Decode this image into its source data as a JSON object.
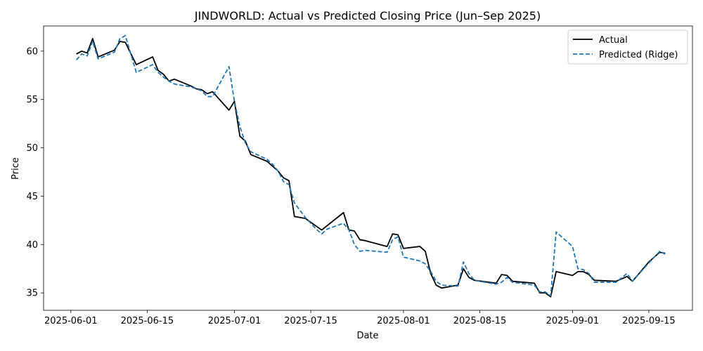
{
  "chart_data": {
    "type": "line",
    "title": "JINDWORLD: Actual vs Predicted Closing Price (Jun–Sep 2025)",
    "xlabel": "Date",
    "ylabel": "Price",
    "x_axis_type": "date",
    "xlim": [
      "2025-05-27",
      "2025-09-23"
    ],
    "ylim": [
      33.2,
      62.6
    ],
    "x_ticks": [
      "2025-06-01",
      "2025-06-15",
      "2025-07-01",
      "2025-07-15",
      "2025-08-01",
      "2025-08-15",
      "2025-09-01",
      "2025-09-15"
    ],
    "y_ticks": [
      35,
      40,
      45,
      50,
      55,
      60
    ],
    "grid": false,
    "legend_position": "top-right",
    "series": [
      {
        "name": "Actual",
        "color": "#000000",
        "style": "solid",
        "points": [
          [
            "2025-06-02",
            59.7
          ],
          [
            "2025-06-03",
            60.0
          ],
          [
            "2025-06-04",
            59.8
          ],
          [
            "2025-06-05",
            61.3
          ],
          [
            "2025-06-06",
            59.4
          ],
          [
            "2025-06-09",
            60.1
          ],
          [
            "2025-06-10",
            61.0
          ],
          [
            "2025-06-11",
            60.9
          ],
          [
            "2025-06-13",
            58.6
          ],
          [
            "2025-06-16",
            59.4
          ],
          [
            "2025-06-17",
            58.0
          ],
          [
            "2025-06-18",
            57.6
          ],
          [
            "2025-06-19",
            56.9
          ],
          [
            "2025-06-20",
            57.1
          ],
          [
            "2025-06-23",
            56.4
          ],
          [
            "2025-06-24",
            56.1
          ],
          [
            "2025-06-25",
            56.0
          ],
          [
            "2025-06-26",
            55.6
          ],
          [
            "2025-06-27",
            55.8
          ],
          [
            "2025-06-30",
            53.9
          ],
          [
            "2025-07-01",
            54.8
          ],
          [
            "2025-07-02",
            51.2
          ],
          [
            "2025-07-03",
            50.7
          ],
          [
            "2025-07-04",
            49.3
          ],
          [
            "2025-07-07",
            48.6
          ],
          [
            "2025-07-08",
            48.1
          ],
          [
            "2025-07-09",
            47.6
          ],
          [
            "2025-07-10",
            46.9
          ],
          [
            "2025-07-11",
            46.6
          ],
          [
            "2025-07-12",
            42.9
          ],
          [
            "2025-07-14",
            42.7
          ],
          [
            "2025-07-17",
            41.5
          ],
          [
            "2025-07-21",
            43.3
          ],
          [
            "2025-07-22",
            41.5
          ],
          [
            "2025-07-23",
            41.4
          ],
          [
            "2025-07-24",
            40.5
          ],
          [
            "2025-07-25",
            40.4
          ],
          [
            "2025-07-29",
            39.8
          ],
          [
            "2025-07-30",
            41.1
          ],
          [
            "2025-07-31",
            41.0
          ],
          [
            "2025-08-01",
            39.6
          ],
          [
            "2025-08-04",
            39.8
          ],
          [
            "2025-08-05",
            39.3
          ],
          [
            "2025-08-06",
            37.0
          ],
          [
            "2025-08-07",
            35.8
          ],
          [
            "2025-08-08",
            35.5
          ],
          [
            "2025-08-11",
            35.8
          ],
          [
            "2025-08-12",
            37.5
          ],
          [
            "2025-08-13",
            36.6
          ],
          [
            "2025-08-14",
            36.3
          ],
          [
            "2025-08-18",
            36.0
          ],
          [
            "2025-08-19",
            36.9
          ],
          [
            "2025-08-20",
            36.8
          ],
          [
            "2025-08-21",
            36.2
          ],
          [
            "2025-08-25",
            36.0
          ],
          [
            "2025-08-26",
            35.0
          ],
          [
            "2025-08-27",
            35.0
          ],
          [
            "2025-08-28",
            34.6
          ],
          [
            "2025-08-29",
            37.2
          ],
          [
            "2025-09-01",
            36.8
          ],
          [
            "2025-09-02",
            37.2
          ],
          [
            "2025-09-03",
            37.2
          ],
          [
            "2025-09-04",
            36.9
          ],
          [
            "2025-09-05",
            36.3
          ],
          [
            "2025-09-09",
            36.2
          ],
          [
            "2025-09-11",
            36.7
          ],
          [
            "2025-09-12",
            36.2
          ],
          [
            "2025-09-15",
            38.2
          ],
          [
            "2025-09-17",
            39.2
          ],
          [
            "2025-09-18",
            39.1
          ]
        ]
      },
      {
        "name": "Predicted (Ridge)",
        "color": "#1f77b4",
        "style": "dashed",
        "points": [
          [
            "2025-06-02",
            59.1
          ],
          [
            "2025-06-03",
            59.7
          ],
          [
            "2025-06-04",
            59.5
          ],
          [
            "2025-06-05",
            61.0
          ],
          [
            "2025-06-06",
            59.2
          ],
          [
            "2025-06-09",
            59.9
          ],
          [
            "2025-06-10",
            61.3
          ],
          [
            "2025-06-11",
            61.6
          ],
          [
            "2025-06-13",
            57.8
          ],
          [
            "2025-06-16",
            58.6
          ],
          [
            "2025-06-17",
            57.8
          ],
          [
            "2025-06-18",
            57.3
          ],
          [
            "2025-06-19",
            56.9
          ],
          [
            "2025-06-20",
            56.6
          ],
          [
            "2025-06-23",
            56.3
          ],
          [
            "2025-06-24",
            56.1
          ],
          [
            "2025-06-25",
            55.9
          ],
          [
            "2025-06-26",
            55.3
          ],
          [
            "2025-06-27",
            55.3
          ],
          [
            "2025-06-30",
            58.4
          ],
          [
            "2025-07-01",
            54.8
          ],
          [
            "2025-07-02",
            52.2
          ],
          [
            "2025-07-03",
            50.5
          ],
          [
            "2025-07-04",
            49.6
          ],
          [
            "2025-07-07",
            48.8
          ],
          [
            "2025-07-08",
            48.3
          ],
          [
            "2025-07-09",
            47.6
          ],
          [
            "2025-07-10",
            46.5
          ],
          [
            "2025-07-11",
            46.2
          ],
          [
            "2025-07-12",
            44.3
          ],
          [
            "2025-07-14",
            42.8
          ],
          [
            "2025-07-16",
            41.6
          ],
          [
            "2025-07-17",
            41.1
          ],
          [
            "2025-07-18",
            41.6
          ],
          [
            "2025-07-21",
            42.2
          ],
          [
            "2025-07-22",
            41.5
          ],
          [
            "2025-07-23",
            40.0
          ],
          [
            "2025-07-24",
            39.3
          ],
          [
            "2025-07-25",
            39.4
          ],
          [
            "2025-07-29",
            39.2
          ],
          [
            "2025-07-30",
            40.5
          ],
          [
            "2025-07-31",
            40.8
          ],
          [
            "2025-08-01",
            38.7
          ],
          [
            "2025-08-04",
            38.3
          ],
          [
            "2025-08-05",
            38.0
          ],
          [
            "2025-08-06",
            37.2
          ],
          [
            "2025-08-07",
            36.2
          ],
          [
            "2025-08-08",
            35.8
          ],
          [
            "2025-08-11",
            35.7
          ],
          [
            "2025-08-12",
            38.2
          ],
          [
            "2025-08-13",
            37.0
          ],
          [
            "2025-08-14",
            36.3
          ],
          [
            "2025-08-18",
            35.9
          ],
          [
            "2025-08-19",
            36.1
          ],
          [
            "2025-08-20",
            36.6
          ],
          [
            "2025-08-21",
            36.1
          ],
          [
            "2025-08-25",
            35.8
          ],
          [
            "2025-08-26",
            35.1
          ],
          [
            "2025-08-27",
            35.1
          ],
          [
            "2025-08-28",
            34.7
          ],
          [
            "2025-08-29",
            41.3
          ],
          [
            "2025-09-01",
            39.8
          ],
          [
            "2025-09-02",
            37.5
          ],
          [
            "2025-09-03",
            37.4
          ],
          [
            "2025-09-04",
            37.0
          ],
          [
            "2025-09-05",
            36.1
          ],
          [
            "2025-09-09",
            36.1
          ],
          [
            "2025-09-11",
            37.0
          ],
          [
            "2025-09-12",
            36.2
          ],
          [
            "2025-09-15",
            38.1
          ],
          [
            "2025-09-17",
            39.3
          ],
          [
            "2025-09-18",
            39.0
          ]
        ]
      }
    ]
  }
}
